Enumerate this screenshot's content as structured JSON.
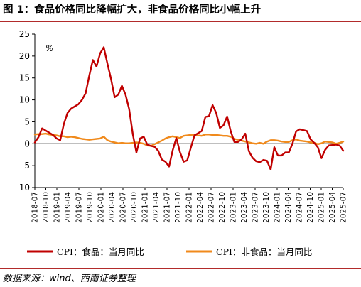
{
  "header": {
    "title": "图 1：食品价格同比降幅扩大，非食品价格同比小幅上升"
  },
  "footer": {
    "source": "数据来源：wind、西南证券整理"
  },
  "colors": {
    "food": "#c00000",
    "nonfood": "#f08a1c",
    "rule": "#b22b2b"
  },
  "chart_data": {
    "type": "line",
    "unit_label": "%",
    "ylim": [
      -10,
      25
    ],
    "yticks": [
      -10,
      -5,
      0,
      5,
      10,
      15,
      20,
      25
    ],
    "grid": false,
    "legend_position": "bottom",
    "xtick_labels": [
      "2018-07",
      "2018-10",
      "2019-01",
      "2019-04",
      "2019-07",
      "2019-10",
      "2020-01",
      "2020-04",
      "2020-07",
      "2020-10",
      "2021-01",
      "2021-04",
      "2021-07",
      "2021-10",
      "2022-01",
      "2022-04",
      "2022-07",
      "2022-10",
      "2023-01",
      "2023-04",
      "2023-07",
      "2023-10",
      "2024-01",
      "2024-04",
      "2024-07",
      "2024-10",
      "2025-01",
      "2025-04",
      "2025-07"
    ],
    "x_start": "2018-07",
    "x_end": "2025-07",
    "series": [
      {
        "name": "CPI：食品：当月同比",
        "color": "#c00000",
        "values": [
          0.3,
          1.5,
          3.5,
          3.0,
          2.5,
          2.0,
          1.2,
          0.8,
          4.5,
          7.0,
          8.0,
          8.5,
          9.0,
          10.0,
          11.5,
          15.5,
          19.1,
          17.6,
          20.6,
          22.0,
          18.3,
          14.8,
          10.6,
          11.2,
          13.2,
          11.2,
          7.9,
          2.2,
          -2.0,
          1.2,
          1.6,
          -0.2,
          -0.5,
          -0.7,
          -1.6,
          -3.6,
          -4.1,
          -5.2,
          -1.5,
          1.3,
          -1.9,
          -4.1,
          -3.8,
          -0.9,
          1.9,
          2.4,
          2.9,
          6.1,
          6.3,
          8.8,
          7.0,
          3.6,
          4.2,
          6.2,
          2.8,
          0.4,
          0.4,
          1.0,
          2.3,
          -1.7,
          -3.2,
          -4.0,
          -4.2,
          -3.7,
          -3.9,
          -5.9,
          -0.8,
          -2.7,
          -2.7,
          -2.0,
          -2.0,
          0.0,
          2.8,
          3.3,
          3.1,
          2.9,
          1.0,
          0.2,
          -0.8,
          -3.3,
          -1.4,
          -0.4,
          -0.3,
          -0.2,
          -0.4,
          -1.6
        ],
        "legend_label": "CPI：食品：当月同比"
      },
      {
        "name": "CPI：非食品：当月同比",
        "color": "#f08a1c",
        "values": [
          2.1,
          2.2,
          2.2,
          2.3,
          2.1,
          2.0,
          1.9,
          1.7,
          1.7,
          1.5,
          1.6,
          1.5,
          1.3,
          1.1,
          1.0,
          0.9,
          1.0,
          1.1,
          1.2,
          1.6,
          0.8,
          0.5,
          0.3,
          0.1,
          0.2,
          0.1,
          0.1,
          0.2,
          0.3,
          0.2,
          0.0,
          -0.4,
          -0.5,
          -0.1,
          0.3,
          0.7,
          1.2,
          1.5,
          1.7,
          1.5,
          1.3,
          1.8,
          1.9,
          2.0,
          2.1,
          1.9,
          1.8,
          2.1,
          2.1,
          2.0,
          2.0,
          1.9,
          1.8,
          1.8,
          1.6,
          1.1,
          0.9,
          0.7,
          0.5,
          0.3,
          0.1,
          0.0,
          0.2,
          0.0,
          0.5,
          0.8,
          0.8,
          0.7,
          0.5,
          0.4,
          0.4,
          0.8,
          1.0,
          0.7,
          0.6,
          0.5,
          0.3,
          0.2,
          -0.1,
          0.1,
          0.5,
          0.4,
          0.3,
          0.0,
          0.2,
          0.5
        ],
        "legend_label": "CPI：非食品：当月同比"
      }
    ]
  }
}
